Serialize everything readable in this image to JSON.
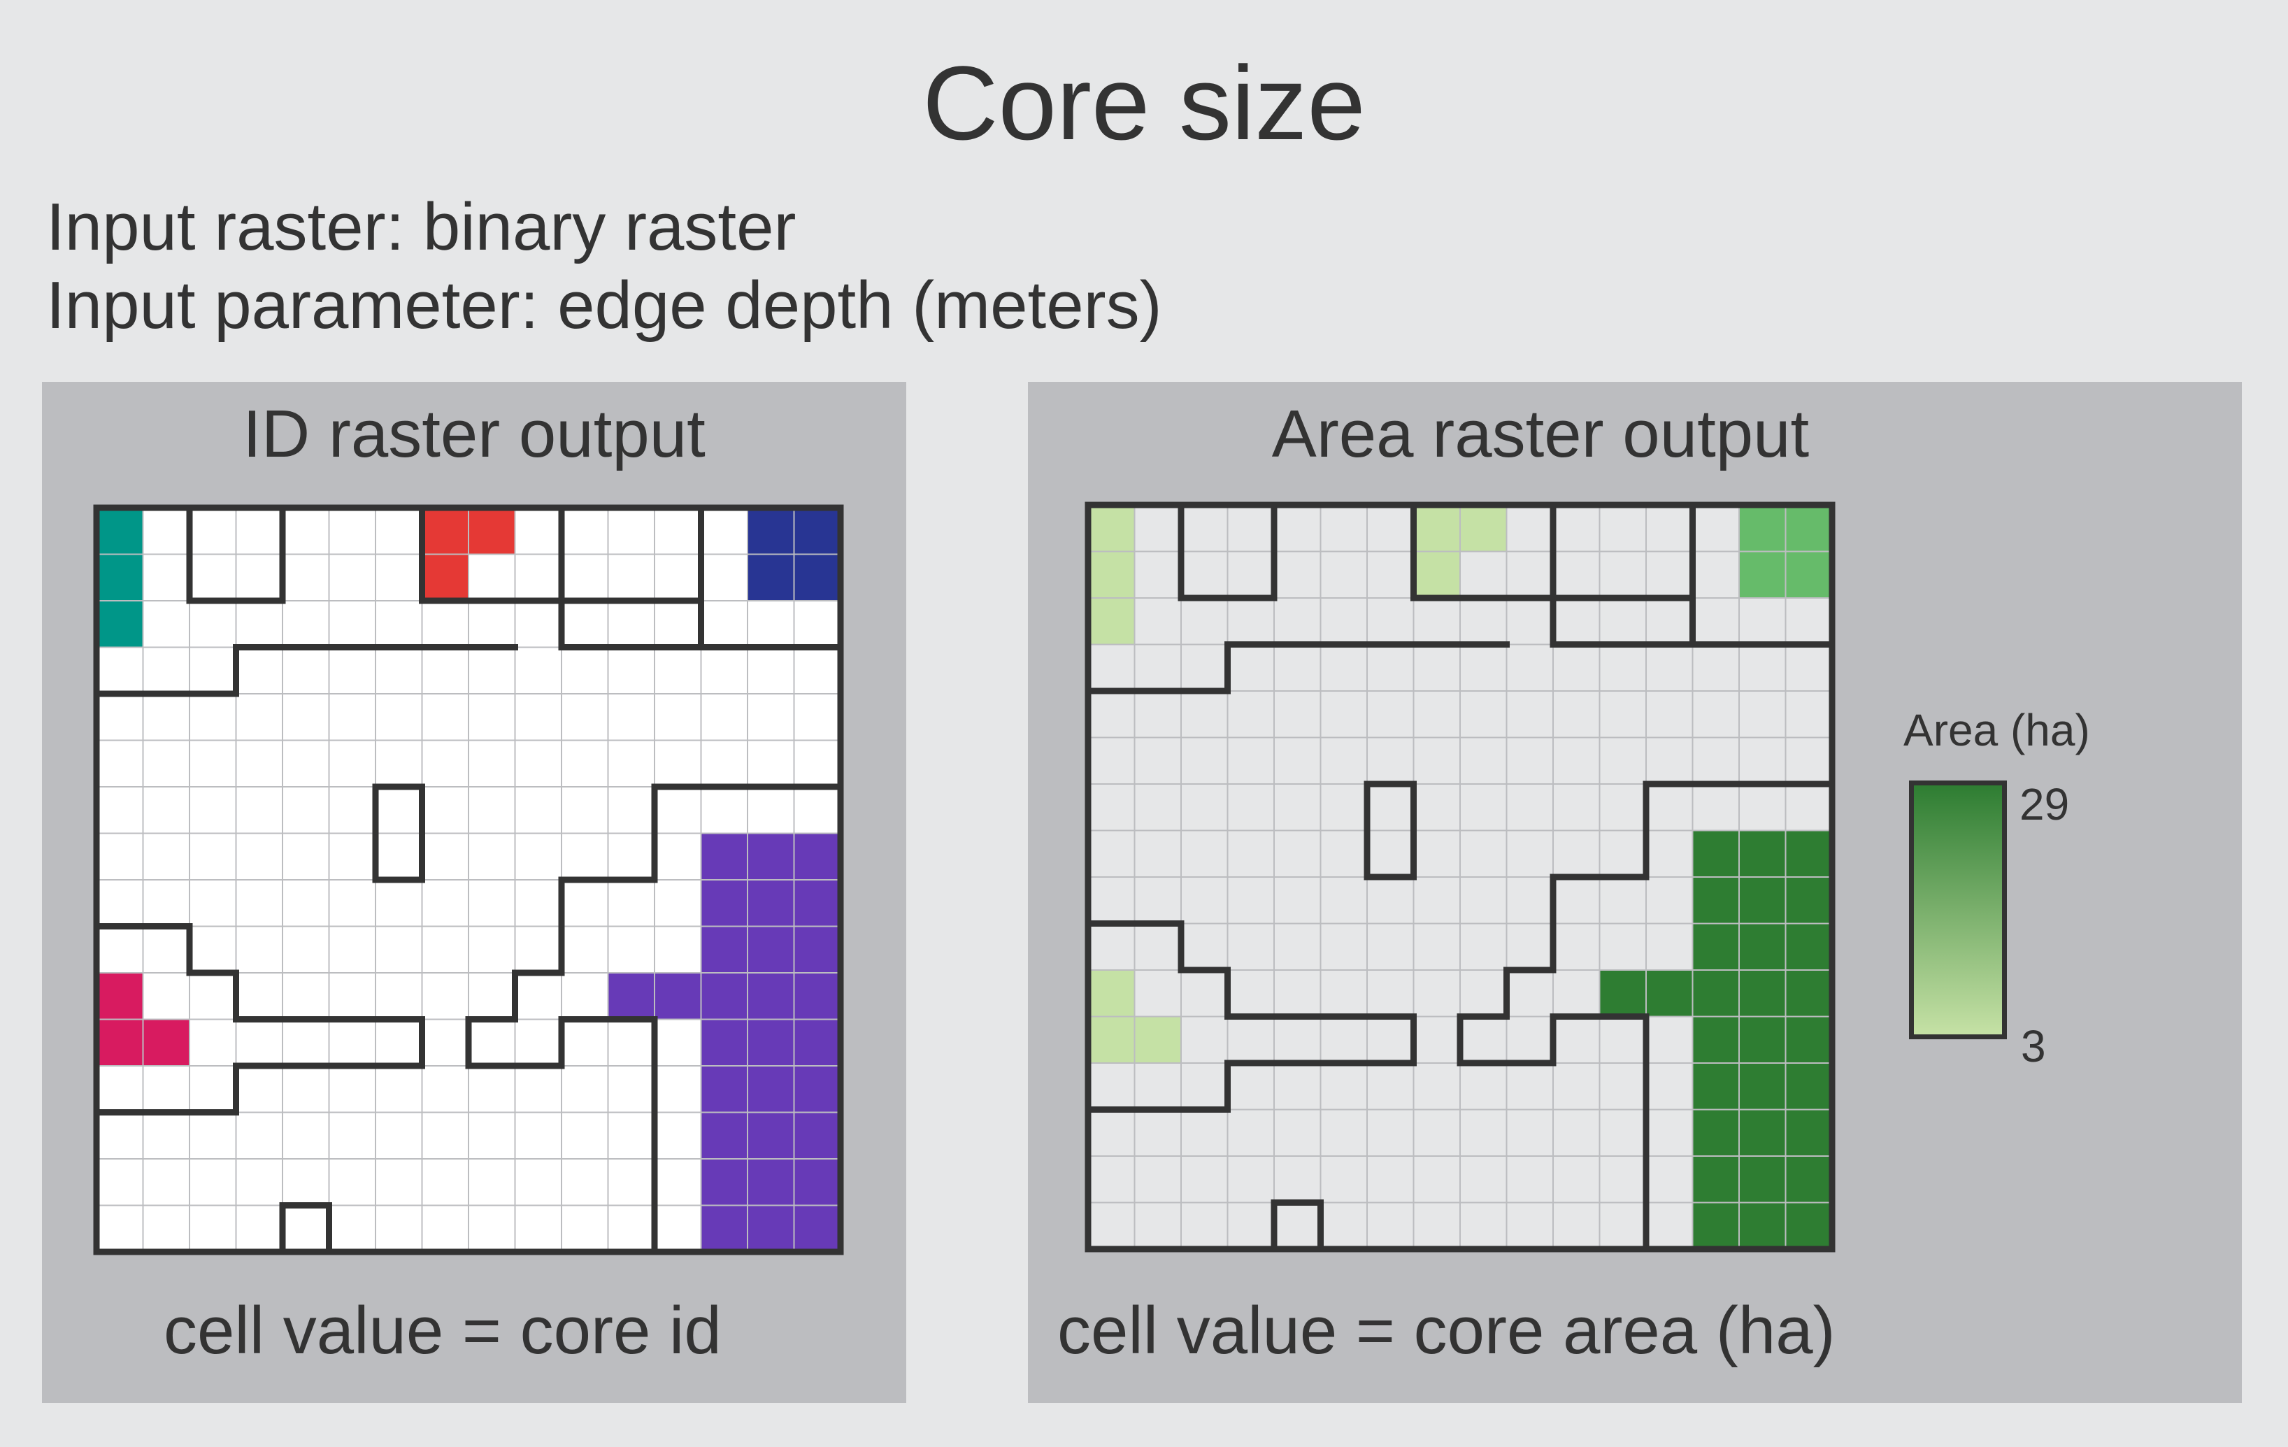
{
  "title": "Core size",
  "inputs": {
    "raster": "Input raster: binary raster",
    "parameter": "Input parameter: edge depth (meters)"
  },
  "id_panel": {
    "title": "ID raster output",
    "caption": "cell value = core id",
    "background": "#ffffff",
    "core_colors": {
      "teal": "#009688",
      "red": "#e53935",
      "navy": "#283593",
      "magenta": "#d81b60",
      "purple": "#673ab7"
    }
  },
  "area_panel": {
    "title": "Area raster output",
    "caption": "cell value = core area (ha)",
    "background": "#e6e7e8",
    "area_colors": {
      "3ha": "#c5e1a5",
      "5ha": "#66bb6a",
      "29ha": "#2e7d32"
    }
  },
  "legend": {
    "title": "Area (ha)",
    "max_label": "29",
    "min_label": "3",
    "max_value": 29,
    "min_value": 3,
    "color_high": "#2e7d32",
    "color_low": "#c5e1a5"
  },
  "grid": {
    "rows": 16,
    "cols": 16,
    "line_color": "#bcbdc0",
    "boundary_color": "#333333",
    "cores": [
      {
        "id": "teal",
        "area": "3ha",
        "cells": [
          [
            0,
            0
          ],
          [
            1,
            0
          ],
          [
            2,
            0
          ]
        ]
      },
      {
        "id": "red",
        "area": "3ha",
        "cells": [
          [
            0,
            7
          ],
          [
            0,
            8
          ],
          [
            1,
            7
          ]
        ]
      },
      {
        "id": "navy",
        "area": "5ha",
        "cells": [
          [
            0,
            14
          ],
          [
            0,
            15
          ],
          [
            1,
            14
          ],
          [
            1,
            15
          ]
        ]
      },
      {
        "id": "magenta",
        "area": "3ha",
        "cells": [
          [
            10,
            0
          ],
          [
            11,
            0
          ],
          [
            11,
            1
          ]
        ]
      },
      {
        "id": "purple",
        "area": "29ha",
        "cells": [
          [
            7,
            13
          ],
          [
            7,
            14
          ],
          [
            7,
            15
          ],
          [
            8,
            13
          ],
          [
            8,
            14
          ],
          [
            8,
            15
          ],
          [
            9,
            13
          ],
          [
            9,
            14
          ],
          [
            9,
            15
          ],
          [
            10,
            11
          ],
          [
            10,
            12
          ],
          [
            10,
            13
          ],
          [
            10,
            14
          ],
          [
            10,
            15
          ],
          [
            11,
            13
          ],
          [
            11,
            14
          ],
          [
            11,
            15
          ],
          [
            12,
            13
          ],
          [
            12,
            14
          ],
          [
            12,
            15
          ],
          [
            13,
            13
          ],
          [
            13,
            14
          ],
          [
            13,
            15
          ],
          [
            14,
            13
          ],
          [
            14,
            14
          ],
          [
            14,
            15
          ],
          [
            15,
            13
          ],
          [
            15,
            14
          ],
          [
            15,
            15
          ]
        ]
      }
    ],
    "boundaries": [
      [
        [
          0,
          0
        ],
        [
          16,
          0
        ],
        [
          16,
          16
        ],
        [
          0,
          16
        ],
        [
          0,
          0
        ]
      ],
      [
        [
          2,
          0
        ],
        [
          2,
          2
        ],
        [
          4,
          2
        ],
        [
          4,
          0
        ]
      ],
      [
        [
          7,
          0
        ],
        [
          7,
          2
        ],
        [
          10,
          2
        ],
        [
          10,
          3
        ],
        [
          13,
          3
        ],
        [
          13,
          2
        ],
        [
          10,
          2
        ],
        [
          10,
          0
        ]
      ],
      [
        [
          13,
          0
        ],
        [
          13,
          3
        ],
        [
          16,
          3
        ]
      ],
      [
        [
          0,
          4
        ],
        [
          3,
          4
        ],
        [
          3,
          3
        ],
        [
          9,
          3
        ]
      ],
      [
        [
          6,
          6
        ],
        [
          7,
          6
        ],
        [
          7,
          8
        ],
        [
          6,
          8
        ],
        [
          6,
          6
        ]
      ],
      [
        [
          16,
          6
        ],
        [
          12,
          6
        ],
        [
          12,
          8
        ],
        [
          10,
          8
        ],
        [
          10,
          10
        ],
        [
          9,
          10
        ],
        [
          9,
          11
        ],
        [
          8,
          11
        ],
        [
          8,
          12
        ],
        [
          10,
          12
        ],
        [
          10,
          11
        ],
        [
          12,
          11
        ],
        [
          12,
          16
        ]
      ],
      [
        [
          0,
          9
        ],
        [
          2,
          9
        ],
        [
          2,
          10
        ],
        [
          3,
          10
        ],
        [
          3,
          11
        ],
        [
          7,
          11
        ],
        [
          7,
          12
        ],
        [
          3,
          12
        ],
        [
          3,
          13
        ],
        [
          0,
          13
        ]
      ],
      [
        [
          4,
          16
        ],
        [
          4,
          15
        ],
        [
          5,
          15
        ],
        [
          5,
          16
        ]
      ]
    ]
  }
}
